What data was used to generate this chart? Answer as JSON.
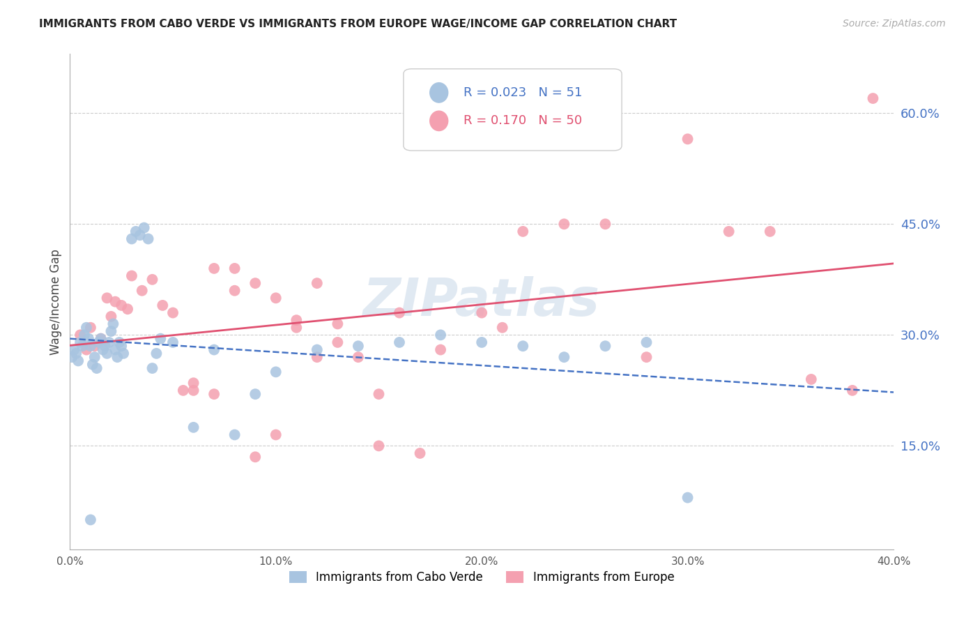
{
  "title": "IMMIGRANTS FROM CABO VERDE VS IMMIGRANTS FROM EUROPE WAGE/INCOME GAP CORRELATION CHART",
  "source": "Source: ZipAtlas.com",
  "ylabel": "Wage/Income Gap",
  "ytick_labels": [
    "60.0%",
    "45.0%",
    "30.0%",
    "15.0%"
  ],
  "ytick_values": [
    0.6,
    0.45,
    0.3,
    0.15
  ],
  "xmin": 0.0,
  "xmax": 0.4,
  "ymin": 0.01,
  "ymax": 0.68,
  "background_color": "#ffffff",
  "grid_color": "#cccccc",
  "cabo_verde_color": "#a8c4e0",
  "europe_color": "#f4a0b0",
  "cabo_verde_line_color": "#4472c4",
  "europe_line_color": "#e05070",
  "cabo_verde_R": 0.023,
  "cabo_verde_N": 51,
  "europe_R": 0.17,
  "europe_N": 50,
  "watermark": "ZIPatlas",
  "cabo_verde_x": [
    0.001,
    0.002,
    0.003,
    0.004,
    0.005,
    0.006,
    0.007,
    0.008,
    0.009,
    0.01,
    0.011,
    0.012,
    0.013,
    0.014,
    0.015,
    0.016,
    0.017,
    0.018,
    0.019,
    0.02,
    0.021,
    0.022,
    0.023,
    0.024,
    0.025,
    0.026,
    0.03,
    0.032,
    0.034,
    0.036,
    0.038,
    0.04,
    0.042,
    0.044,
    0.05,
    0.06,
    0.07,
    0.08,
    0.09,
    0.1,
    0.12,
    0.14,
    0.16,
    0.18,
    0.2,
    0.22,
    0.24,
    0.26,
    0.28,
    0.3,
    0.01
  ],
  "cabo_verde_y": [
    0.27,
    0.28,
    0.275,
    0.265,
    0.29,
    0.285,
    0.3,
    0.31,
    0.295,
    0.285,
    0.26,
    0.27,
    0.255,
    0.29,
    0.295,
    0.28,
    0.285,
    0.275,
    0.29,
    0.305,
    0.315,
    0.28,
    0.27,
    0.29,
    0.285,
    0.275,
    0.43,
    0.44,
    0.435,
    0.445,
    0.43,
    0.255,
    0.275,
    0.295,
    0.29,
    0.175,
    0.28,
    0.165,
    0.22,
    0.25,
    0.28,
    0.285,
    0.29,
    0.3,
    0.29,
    0.285,
    0.27,
    0.285,
    0.29,
    0.08,
    0.05
  ],
  "europe_x": [
    0.005,
    0.008,
    0.01,
    0.012,
    0.015,
    0.018,
    0.02,
    0.022,
    0.025,
    0.028,
    0.03,
    0.035,
    0.04,
    0.045,
    0.05,
    0.055,
    0.06,
    0.07,
    0.08,
    0.09,
    0.1,
    0.11,
    0.12,
    0.13,
    0.14,
    0.15,
    0.16,
    0.18,
    0.2,
    0.21,
    0.22,
    0.24,
    0.26,
    0.28,
    0.3,
    0.32,
    0.34,
    0.36,
    0.38,
    0.39,
    0.06,
    0.07,
    0.08,
    0.09,
    0.1,
    0.11,
    0.12,
    0.13,
    0.15,
    0.17
  ],
  "europe_y": [
    0.3,
    0.28,
    0.31,
    0.285,
    0.295,
    0.35,
    0.325,
    0.345,
    0.34,
    0.335,
    0.38,
    0.36,
    0.375,
    0.34,
    0.33,
    0.225,
    0.235,
    0.39,
    0.36,
    0.37,
    0.35,
    0.32,
    0.27,
    0.29,
    0.27,
    0.22,
    0.33,
    0.28,
    0.33,
    0.31,
    0.44,
    0.45,
    0.45,
    0.27,
    0.565,
    0.44,
    0.44,
    0.24,
    0.225,
    0.62,
    0.225,
    0.22,
    0.39,
    0.135,
    0.165,
    0.31,
    0.37,
    0.315,
    0.15,
    0.14
  ]
}
